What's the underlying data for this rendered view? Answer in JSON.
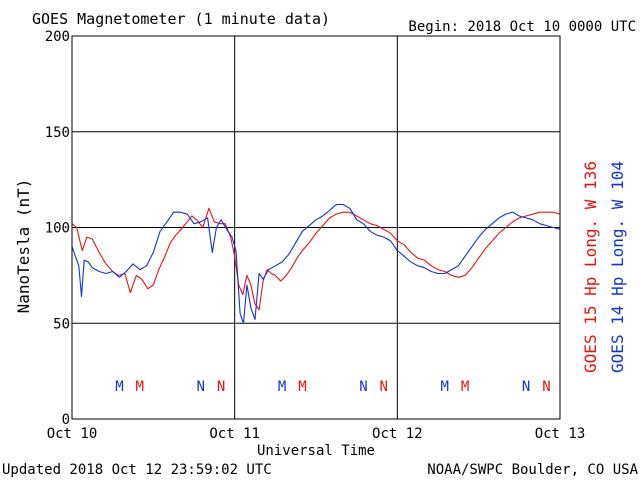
{
  "header": {
    "title": "GOES Magnetometer (1 minute data)",
    "begin": "Begin:  2018 Oct 10 0000 UTC"
  },
  "footer": {
    "updated": "Updated 2018 Oct 12 23:59:02 UTC",
    "credit": "NOAA/SWPC Boulder, CO USA"
  },
  "colors": {
    "goes15": "#ee1111",
    "goes14": "#1133dd",
    "axis": "#000000",
    "background": "#ffffff"
  },
  "chart_data": {
    "type": "line",
    "xlabel": "Universal Time",
    "ylabel": "NanoTesla (nT)",
    "ylim": [
      0,
      200
    ],
    "xlim_hours": [
      0,
      72
    ],
    "yticks": [
      0,
      50,
      100,
      150,
      200
    ],
    "xticks": [
      {
        "hour": 0,
        "label": "Oct 10"
      },
      {
        "hour": 24,
        "label": "Oct 11"
      },
      {
        "hour": 48,
        "label": "Oct 12"
      },
      {
        "hour": 72,
        "label": "Oct 13"
      }
    ],
    "grid": true,
    "legend": "right-vertical",
    "series": [
      {
        "name": "GOES 15 Hp  Long. W 136",
        "color": "#ee1111",
        "x": [
          0,
          0.7,
          1.5,
          2.2,
          3.0,
          4.0,
          5.0,
          6.0,
          6.8,
          7.8,
          8.6,
          9.5,
          10.3,
          11.2,
          12.0,
          12.8,
          13.7,
          14.5,
          15.3,
          16.1,
          17.0,
          17.7,
          18.4,
          19.3,
          20.2,
          21.0,
          21.8,
          22.6,
          23.4,
          24.0,
          24.6,
          25.2,
          25.8,
          26.4,
          27.0,
          27.6,
          28.2,
          28.8,
          29.4,
          30.0,
          30.8,
          31.6,
          32.4,
          33.2,
          34.0,
          35.0,
          36.0,
          37.0,
          38.0,
          39.0,
          40.0,
          41.0,
          42.0,
          43.0,
          44.0,
          45.0,
          46.0,
          47.0,
          48.0,
          49.0,
          50.0,
          51.0,
          52.0,
          53.0,
          54.0,
          55.0,
          56.0,
          57.0,
          58.0,
          59.0,
          60.0,
          61.0,
          62.0,
          63.0,
          64.0,
          65.0,
          66.0,
          67.0,
          68.0,
          69.0,
          70.0,
          71.0,
          72.0
        ],
        "values": [
          102,
          100,
          88,
          95,
          94,
          87,
          81,
          77,
          75,
          76,
          66,
          75,
          73,
          68,
          70,
          78,
          85,
          92,
          96,
          99,
          103,
          106,
          104,
          100,
          110,
          103,
          102,
          102,
          95,
          85,
          70,
          65,
          75,
          70,
          60,
          57,
          72,
          78,
          76,
          75,
          72,
          75,
          79,
          84,
          88,
          92,
          97,
          101,
          105,
          107,
          108,
          108,
          106,
          104,
          102,
          101,
          99,
          97,
          93,
          91,
          87,
          84,
          83,
          80,
          78,
          77,
          75,
          74,
          75,
          79,
          84,
          89,
          93,
          97,
          100,
          103,
          105,
          106,
          107,
          108,
          108,
          108,
          107
        ]
      },
      {
        "name": "GOES 14 Hp  Long. W 104",
        "color": "#1133dd",
        "x": [
          0,
          0.5,
          1.0,
          1.4,
          1.8,
          2.4,
          3.0,
          4.0,
          5.0,
          6.0,
          7.0,
          8.0,
          9.0,
          10.0,
          11.0,
          12.0,
          13.0,
          14.0,
          15.0,
          16.0,
          17.0,
          18.0,
          19.0,
          20.0,
          20.7,
          21.3,
          22.0,
          23.0,
          23.6,
          24.2,
          24.8,
          25.3,
          25.8,
          26.4,
          27.0,
          27.6,
          28.2,
          29.0,
          30.0,
          31.0,
          32.0,
          33.0,
          34.0,
          35.0,
          36.0,
          37.0,
          38.0,
          39.0,
          40.0,
          41.0,
          42.0,
          43.0,
          44.0,
          45.0,
          46.0,
          47.0,
          48.0,
          49.0,
          50.0,
          51.0,
          52.0,
          53.0,
          54.0,
          55.0,
          56.0,
          57.0,
          58.0,
          59.0,
          60.0,
          61.0,
          62.0,
          63.0,
          64.0,
          65.0,
          66.0,
          67.0,
          68.0,
          69.0,
          70.0,
          71.0,
          72.0
        ],
        "values": [
          90,
          85,
          80,
          64,
          83,
          82,
          79,
          77,
          76,
          77,
          74,
          77,
          81,
          78,
          80,
          87,
          98,
          103,
          108,
          108,
          107,
          102,
          103,
          105,
          87,
          100,
          104,
          98,
          95,
          88,
          55,
          50,
          70,
          58,
          52,
          76,
          73,
          78,
          80,
          82,
          86,
          92,
          98,
          101,
          104,
          106,
          109,
          112,
          112,
          110,
          104,
          102,
          98,
          96,
          95,
          93,
          88,
          85,
          82,
          80,
          79,
          77,
          76,
          76,
          78,
          80,
          85,
          90,
          95,
          99,
          102,
          105,
          107,
          108,
          106,
          105,
          104,
          102,
          101,
          100,
          99
        ]
      }
    ],
    "annotations": [
      {
        "label": "M",
        "hour": 7.0,
        "series": "GOES 14 Hp  Long. W 104"
      },
      {
        "label": "M",
        "hour": 10.0,
        "series": "GOES 15 Hp  Long. W 136"
      },
      {
        "label": "N",
        "hour": 19.0,
        "series": "GOES 14 Hp  Long. W 104"
      },
      {
        "label": "N",
        "hour": 22.0,
        "series": "GOES 15 Hp  Long. W 136"
      },
      {
        "label": "M",
        "hour": 31.0,
        "series": "GOES 14 Hp  Long. W 104"
      },
      {
        "label": "M",
        "hour": 34.0,
        "series": "GOES 15 Hp  Long. W 136"
      },
      {
        "label": "N",
        "hour": 43.0,
        "series": "GOES 14 Hp  Long. W 104"
      },
      {
        "label": "N",
        "hour": 46.0,
        "series": "GOES 15 Hp  Long. W 136"
      },
      {
        "label": "M",
        "hour": 55.0,
        "series": "GOES 14 Hp  Long. W 104"
      },
      {
        "label": "M",
        "hour": 58.0,
        "series": "GOES 15 Hp  Long. W 136"
      },
      {
        "label": "N",
        "hour": 67.0,
        "series": "GOES 14 Hp  Long. W 104"
      },
      {
        "label": "N",
        "hour": 70.0,
        "series": "GOES 15 Hp  Long. W 136"
      }
    ]
  }
}
